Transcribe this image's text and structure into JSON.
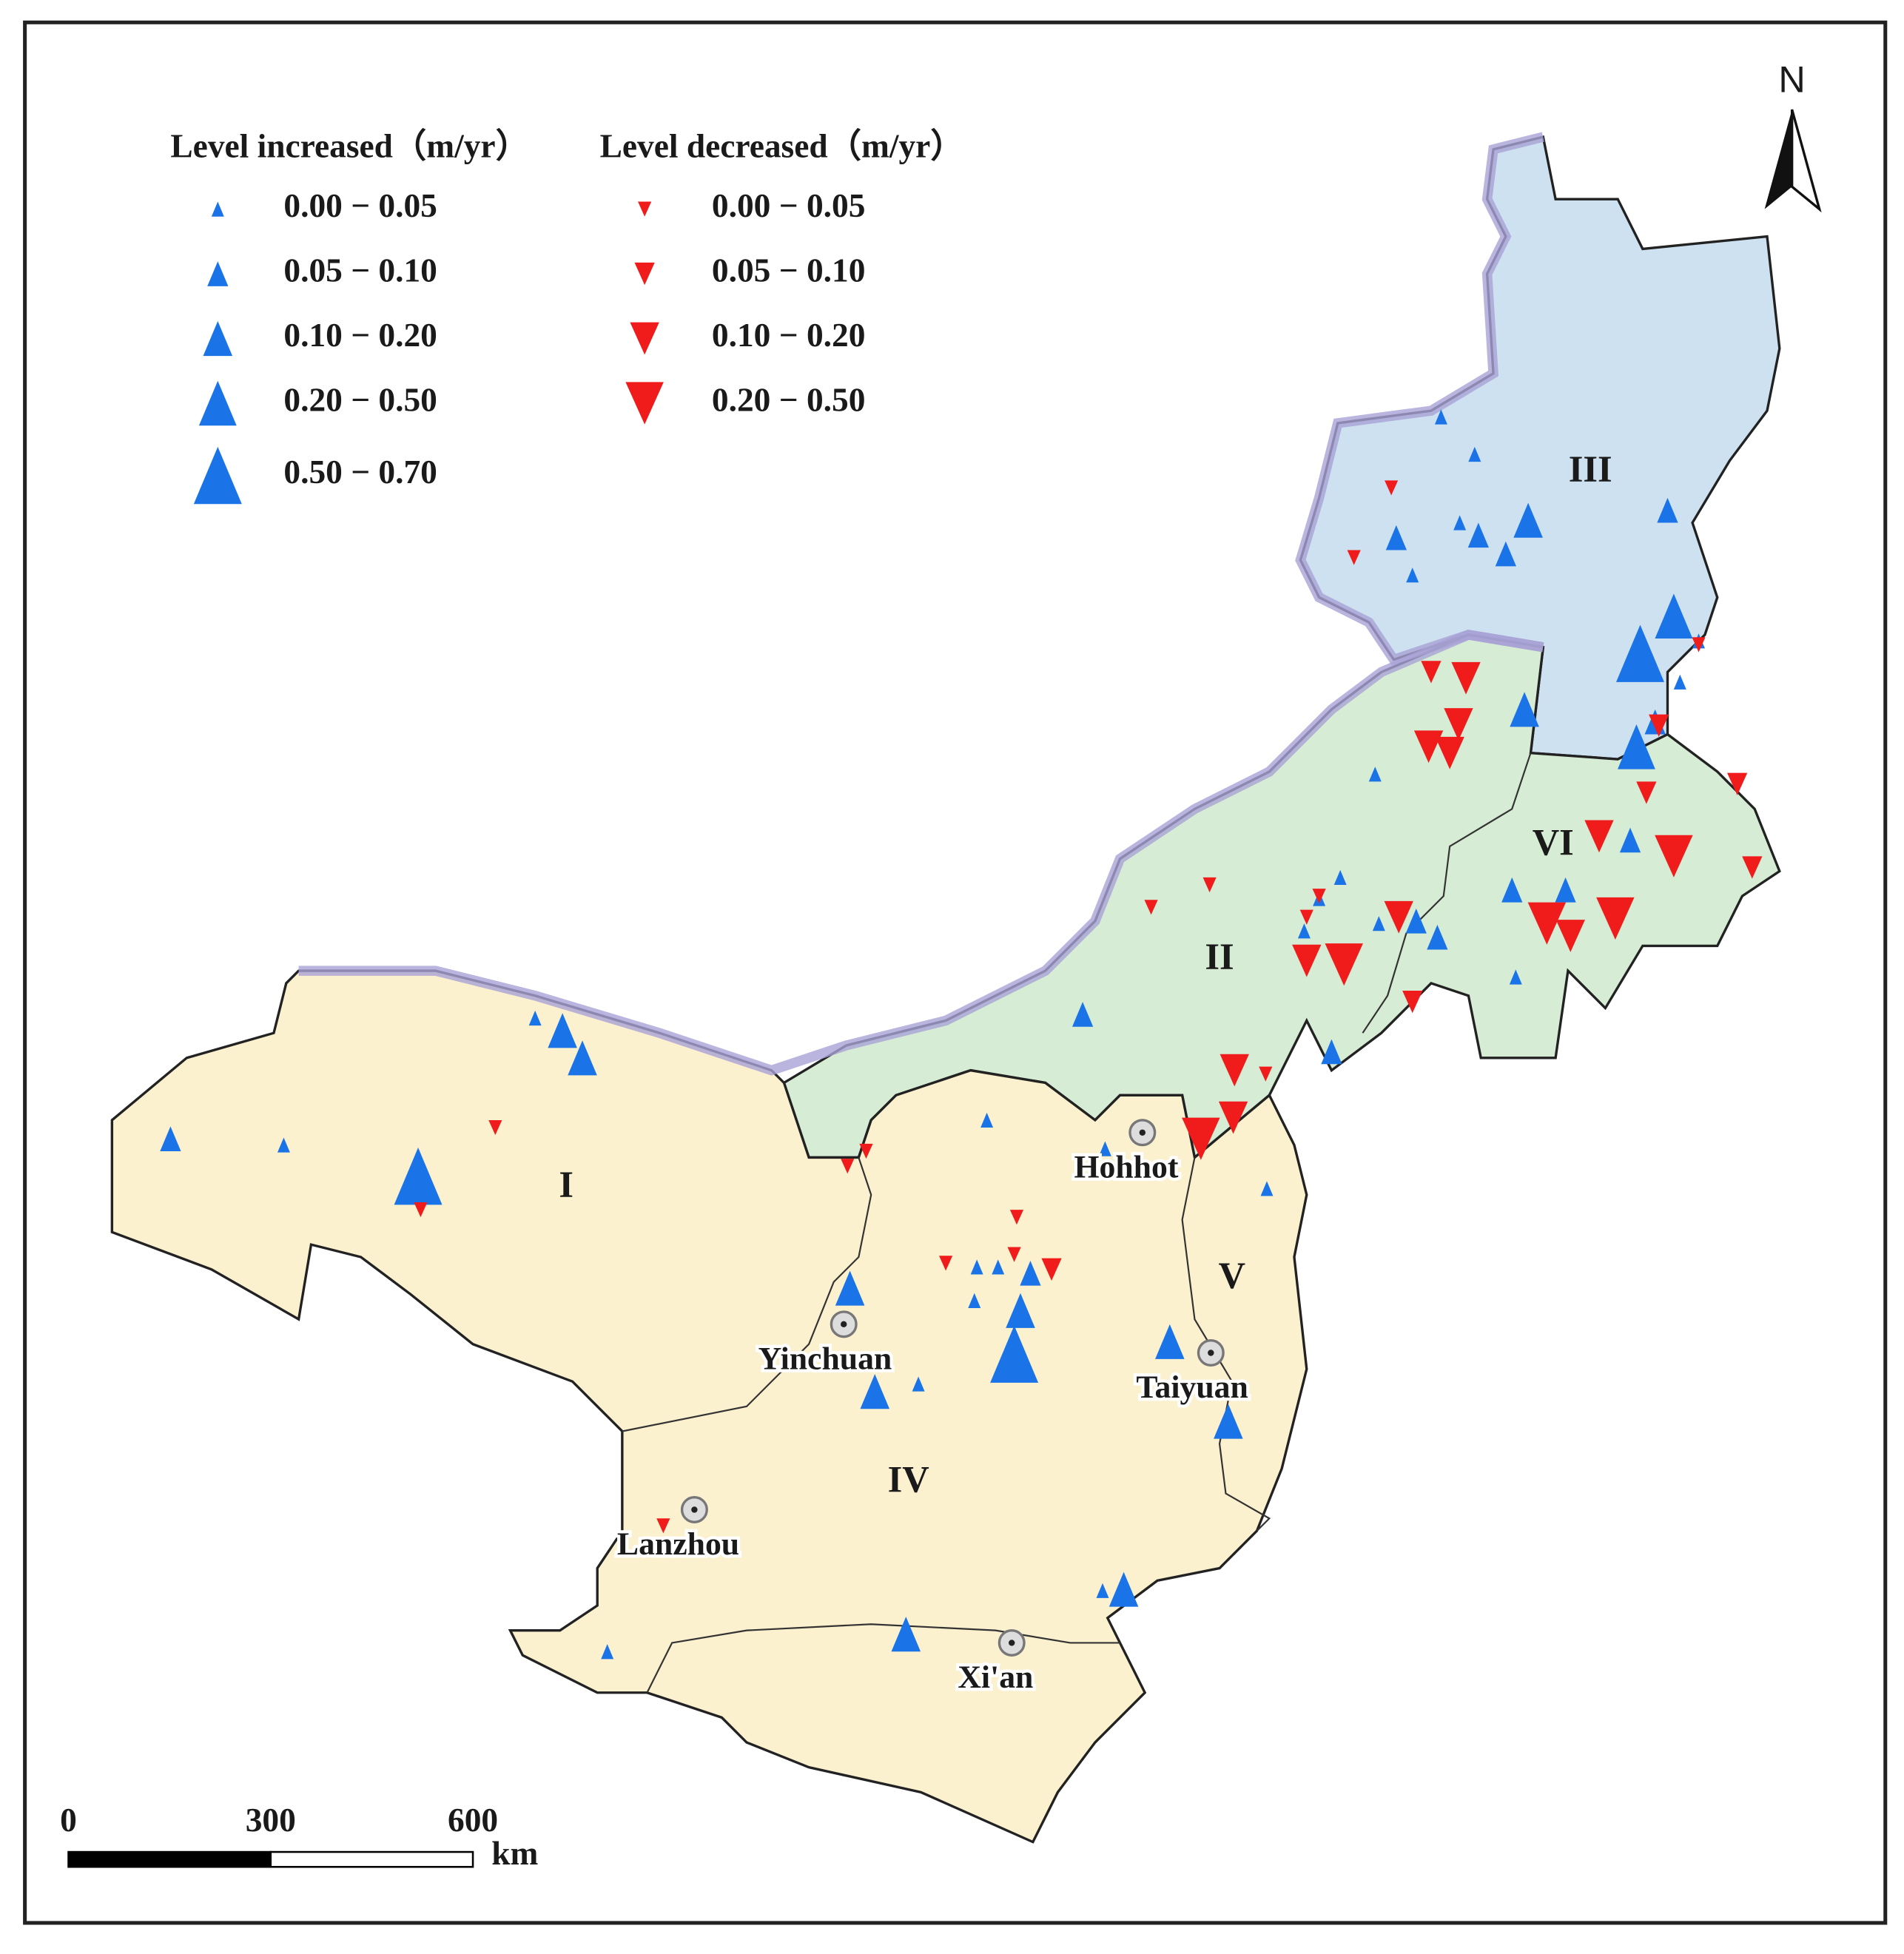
{
  "map": {
    "legend": {
      "increased": {
        "title": "Level increased（m/yr）",
        "items": [
          "0.00 − 0.05",
          "0.05 − 0.10",
          "0.10 − 0.20",
          "0.20 − 0.50",
          "0.50 − 0.70"
        ]
      },
      "decreased": {
        "title": "Level decreased（m/yr）",
        "items": [
          "0.00 − 0.05",
          "0.05 − 0.10",
          "0.10 − 0.20",
          "0.20 − 0.50"
        ]
      }
    },
    "regions": [
      "I",
      "II",
      "III",
      "IV",
      "V",
      "VI"
    ],
    "cities": [
      "Hohhot",
      "Yinchuan",
      "Taiyuan",
      "Lanzhou",
      "Xi'an"
    ],
    "north": "N",
    "scale": {
      "ticks": [
        0,
        300,
        600
      ],
      "unit": "km"
    }
  }
}
